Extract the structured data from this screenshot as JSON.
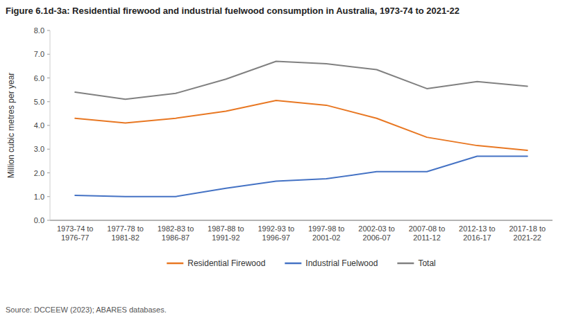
{
  "chart_data": {
    "type": "line",
    "title": "Figure 6.1d-3a: Residential firewood and industrial fuelwood consumption in Australia, 1973-74 to 2021-22",
    "ylabel": "Million cubic metres per year",
    "source": "Source: DCCEEW (2023); ABARES databases.",
    "categories": [
      "1973-74 to\n1976-77",
      "1977-78 to\n1981-82",
      "1982-83 to\n1986-87",
      "1987-88 to\n1991-92",
      "1992-93 to\n1996-97",
      "1997-98 to\n2001-02",
      "2002-03 to\n2006-07",
      "2007-08 to\n2011-12",
      "2012-13 to\n2016-17",
      "2017-18 to\n2021-22"
    ],
    "series": [
      {
        "name": "Residential Firewood",
        "color": "#E87722",
        "values": [
          4.3,
          4.1,
          4.3,
          4.6,
          5.05,
          4.85,
          4.3,
          3.5,
          3.15,
          2.95
        ]
      },
      {
        "name": "Industrial Fuelwood",
        "color": "#4472C4",
        "values": [
          1.05,
          1.0,
          1.0,
          1.35,
          1.65,
          1.75,
          2.05,
          2.05,
          2.7,
          2.7
        ]
      },
      {
        "name": "Total",
        "color": "#808080",
        "values": [
          5.4,
          5.1,
          5.35,
          5.95,
          6.7,
          6.6,
          6.35,
          5.55,
          5.85,
          5.65
        ]
      }
    ],
    "ylim": [
      0,
      8.0
    ],
    "yticks": [
      {
        "value": 0.0,
        "label": "0.0"
      },
      {
        "value": 1.0,
        "label": "1.0"
      },
      {
        "value": 2.0,
        "label": "2.0"
      },
      {
        "value": 3.0,
        "label": "3.0"
      },
      {
        "value": 4.0,
        "label": "4.0"
      },
      {
        "value": 5.0,
        "label": "5.0"
      },
      {
        "value": 6.0,
        "label": "6.0"
      },
      {
        "value": 7.0,
        "label": "7.0"
      },
      {
        "value": 8.0,
        "label": "8.0"
      }
    ],
    "grid": false,
    "legend": "bottom"
  }
}
